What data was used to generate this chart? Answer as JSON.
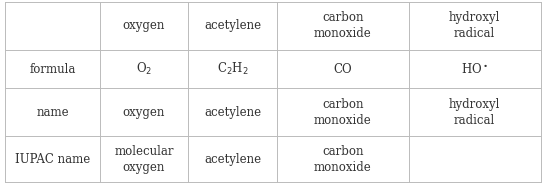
{
  "col_headers": [
    "",
    "oxygen",
    "acetylene",
    "carbon\nmonoxide",
    "hydroxyl\nradical"
  ],
  "rows": [
    {
      "label": "formula",
      "cells": [
        "O$_2$",
        "C$_2$H$_2$",
        "CO",
        "HO$^\\bullet$"
      ]
    },
    {
      "label": "name",
      "cells": [
        "oxygen",
        "acetylene",
        "carbon\nmonoxide",
        "hydroxyl\nradical"
      ]
    },
    {
      "label": "IUPAC name",
      "cells": [
        "molecular\noxygen",
        "acetylene",
        "carbon\nmonoxide",
        ""
      ]
    }
  ],
  "background_color": "#ffffff",
  "line_color": "#bbbbbb",
  "text_color": "#333333",
  "font_size": 8.5
}
